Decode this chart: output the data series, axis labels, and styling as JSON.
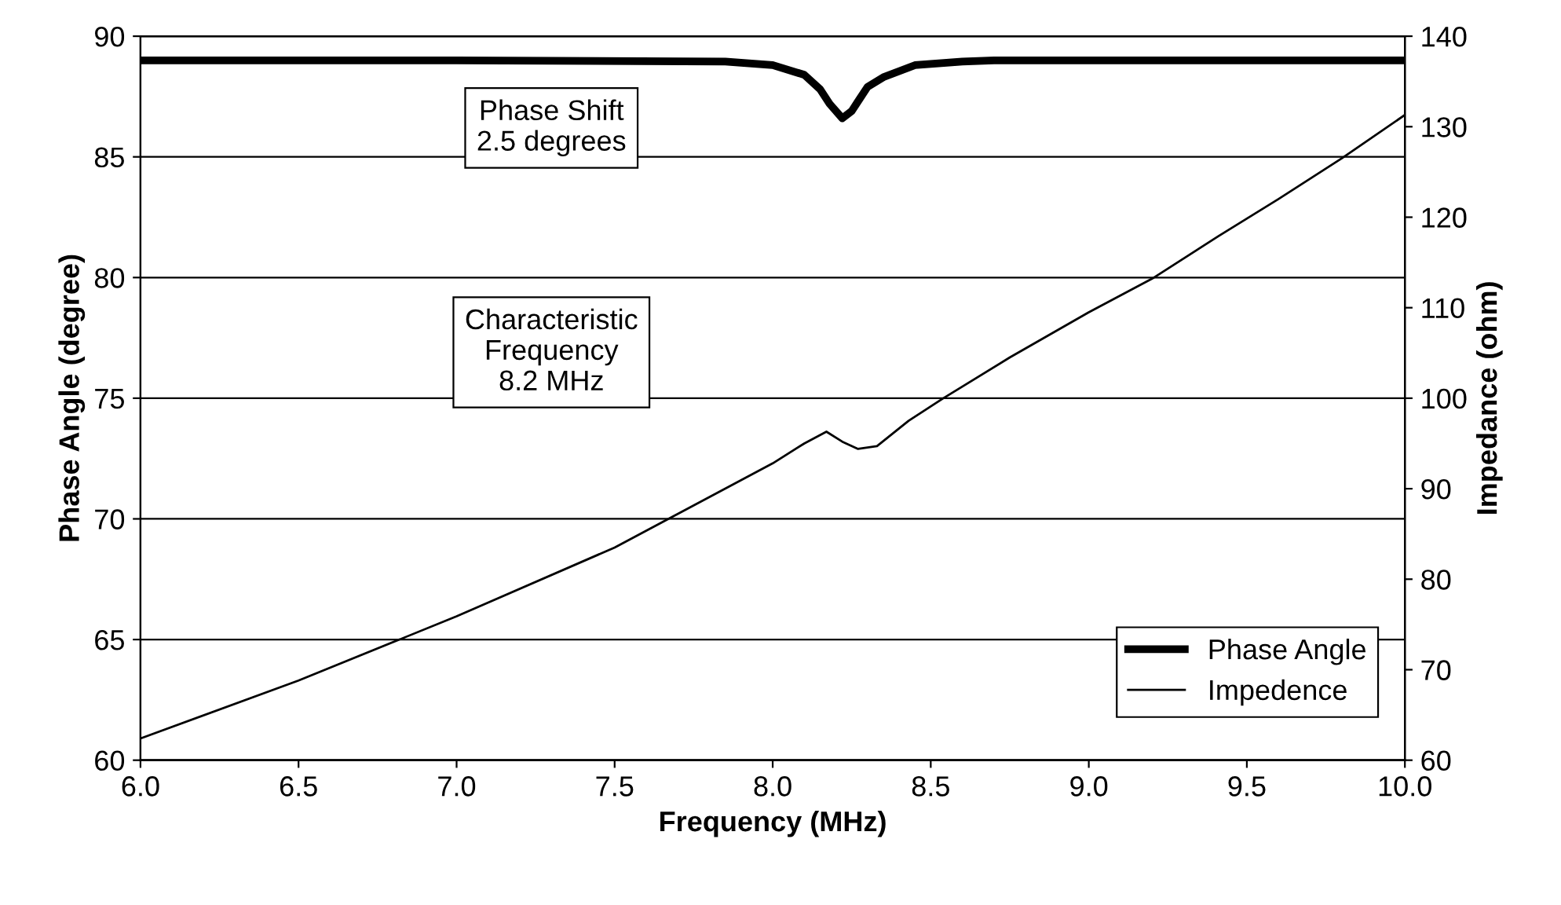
{
  "chart_data": {
    "type": "line",
    "xlabel": "Frequency (MHz)",
    "ylabel": "Phase Angle (degree)",
    "y2label": "Impedance (ohm)",
    "xlim": [
      6,
      10
    ],
    "xticks": [
      {
        "value": 6,
        "label": "6.0"
      },
      {
        "value": 6.5,
        "label": "6.5"
      },
      {
        "value": 7,
        "label": "7.0"
      },
      {
        "value": 7.5,
        "label": "7.5"
      },
      {
        "value": 8,
        "label": "8.0"
      },
      {
        "value": 8.5,
        "label": "8.5"
      },
      {
        "value": 9,
        "label": "9.0"
      },
      {
        "value": 9.5,
        "label": "9.5"
      },
      {
        "value": 10,
        "label": "10.0"
      }
    ],
    "ylim": [
      60,
      90
    ],
    "yticks": [
      60,
      65,
      70,
      75,
      80,
      85,
      90
    ],
    "y2lim": [
      60,
      140
    ],
    "y2ticks": [
      60,
      70,
      80,
      90,
      100,
      110,
      120,
      130,
      140
    ],
    "grid": "y",
    "legend": "bottom right",
    "marker": "none",
    "line_style": "solid",
    "annotations": [
      "Phase Shift\n2.5 degrees",
      "Characteristic\nFrequency\n8.2 MHz"
    ],
    "series": [
      {
        "name": "Phase Angle",
        "color": "#000000",
        "x": [
          6,
          7,
          7.85,
          8,
          8.1,
          8.15,
          8.18,
          8.22,
          8.25,
          8.27,
          8.3,
          8.35,
          8.45,
          8.6,
          8.7,
          9,
          10
        ],
        "values": [
          89,
          89,
          88.95,
          88.8,
          88.4,
          87.8,
          87.2,
          86.6,
          86.9,
          87.3,
          87.9,
          88.3,
          88.8,
          88.95,
          89,
          89,
          89
        ]
      },
      {
        "name": "Impedence",
        "color": "#000000",
        "axis": "y2",
        "x": [
          6,
          6.5,
          7,
          7.5,
          8,
          8.1,
          8.17,
          8.22,
          8.27,
          8.33,
          8.43,
          8.54,
          8.75,
          9,
          9.2,
          9.41,
          9.6,
          9.8,
          10
        ],
        "values": [
          62.4,
          68.8,
          75.9,
          83.5,
          92.8,
          95,
          96.3,
          95.2,
          94.4,
          94.7,
          97.5,
          100,
          104.5,
          109.5,
          113.2,
          117.9,
          122,
          126.5,
          131.3
        ]
      }
    ]
  }
}
